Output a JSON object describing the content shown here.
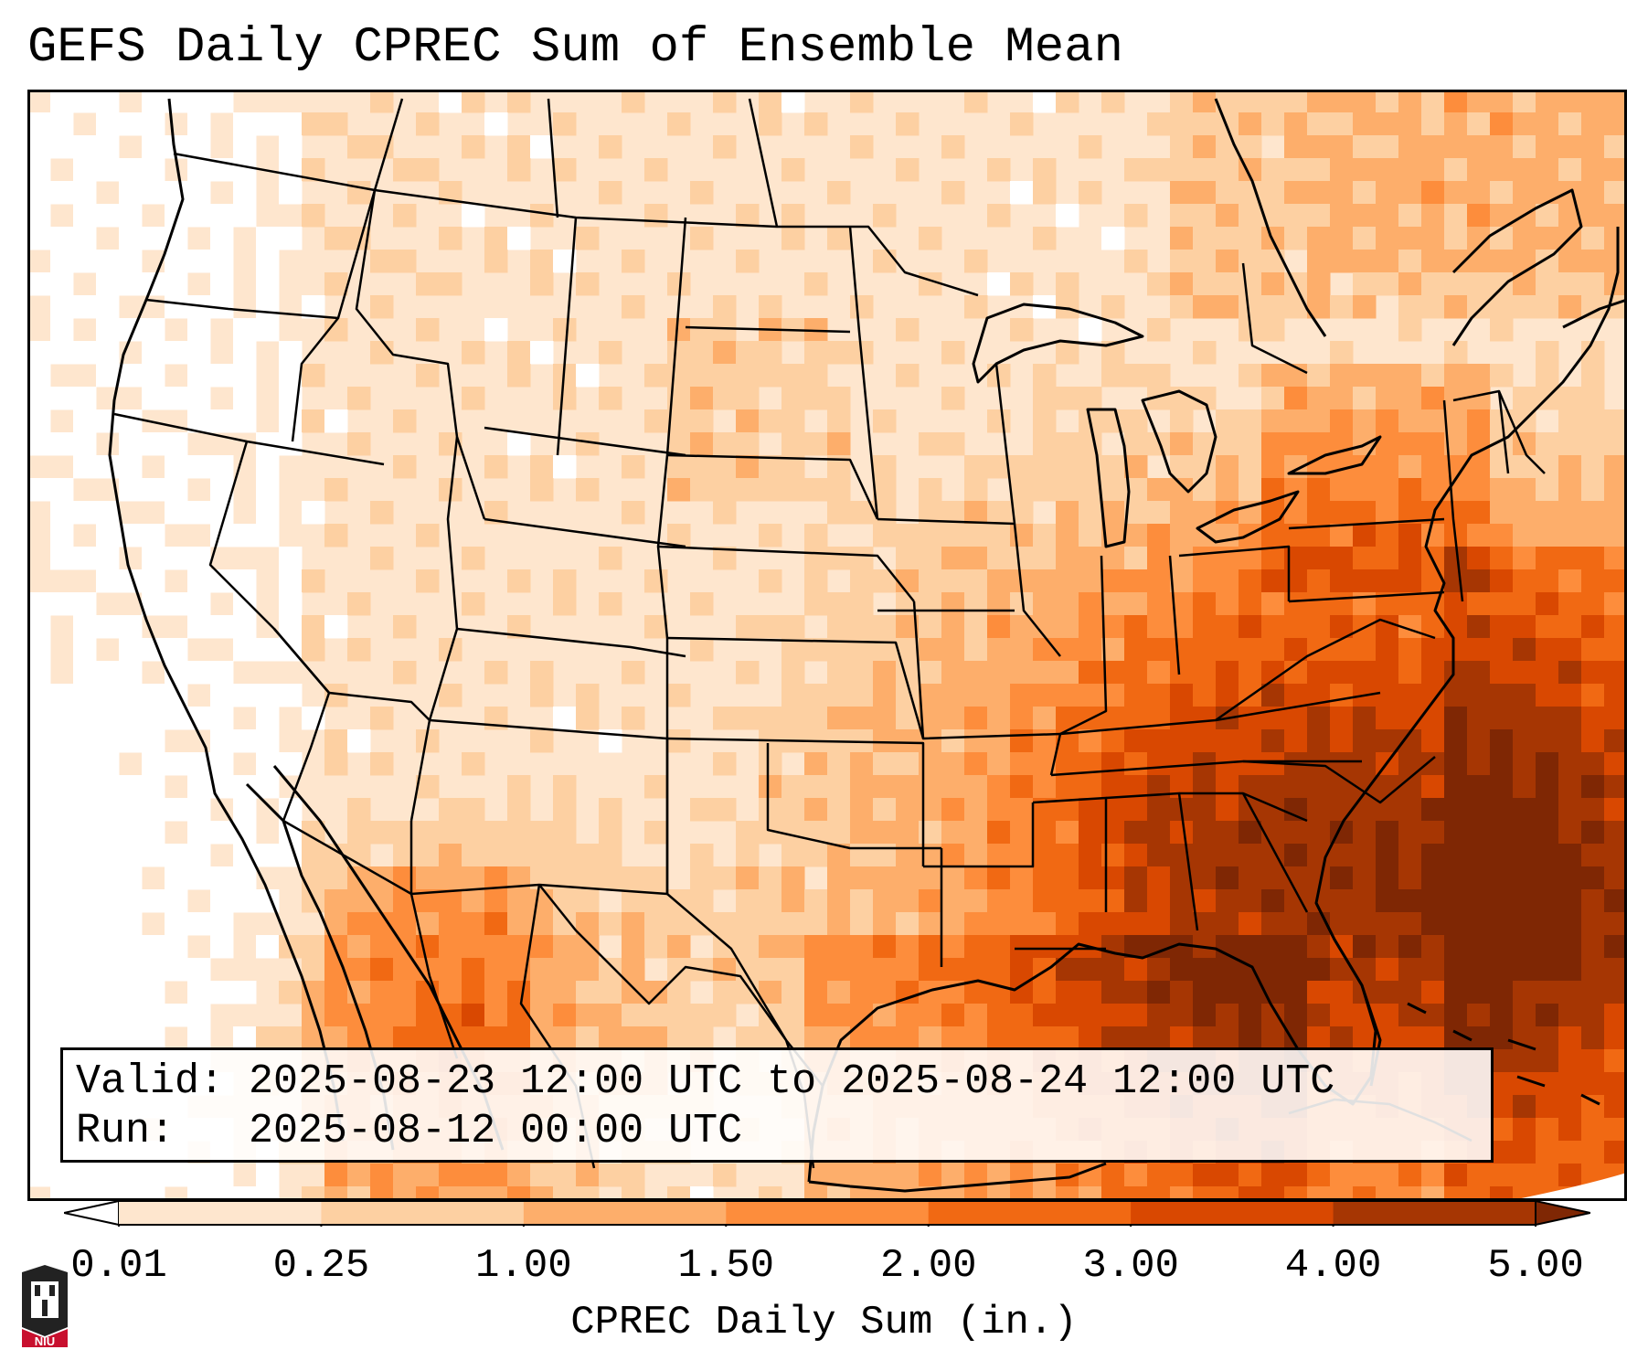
{
  "title": "GEFS Daily CPREC Sum of Ensemble Mean",
  "info": {
    "valid_line": "Valid: 2025-08-23 12:00 UTC to 2025-08-24 12:00 UTC",
    "run_line": "Run:   2025-08-12 00:00 UTC"
  },
  "colorbar": {
    "label": "CPREC Daily Sum (in.)",
    "ticks": [
      "0.01",
      "0.25",
      "1.00",
      "1.50",
      "2.00",
      "3.00",
      "4.00",
      "5.00"
    ],
    "colors": [
      "#fff5eb",
      "#fee6ce",
      "#fdd0a2",
      "#fdae6b",
      "#fd8d3c",
      "#f16913",
      "#d94801",
      "#a63603",
      "#7f2704"
    ],
    "under_color": "#ffffff",
    "over_color": "#7f2704"
  },
  "logo": {
    "text": "NIU",
    "color": "#c8102e"
  },
  "map": {
    "land_base": "#fee6ce",
    "ocean_base": "#fff5eb",
    "border_color": "#000000"
  }
}
